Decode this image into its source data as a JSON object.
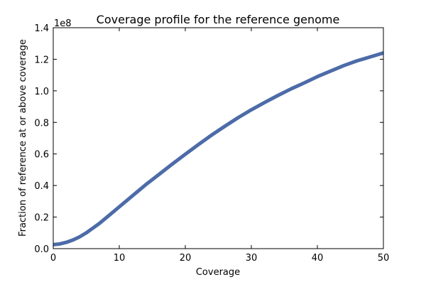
{
  "chart_data": {
    "type": "line",
    "title": "Coverage profile for the reference genome",
    "xlabel": "Coverage",
    "ylabel": "Fraction of reference at or above coverage",
    "y_exponent_label": "1e8",
    "xlim": [
      0,
      50
    ],
    "ylim": [
      0,
      1.4
    ],
    "x_ticks": [
      0,
      10,
      20,
      30,
      40,
      50
    ],
    "x_tick_labels": [
      "0",
      "10",
      "20",
      "30",
      "40",
      "50"
    ],
    "y_ticks": [
      0,
      0.2,
      0.4,
      0.6,
      0.8,
      1.0,
      1.2,
      1.4
    ],
    "y_tick_labels": [
      "0.0",
      "0.2",
      "0.4",
      "0.6",
      "0.8",
      "1.0",
      "1.2",
      "1.4"
    ],
    "grid": false,
    "legend": "none",
    "series": [
      {
        "color": "#4c6ba8",
        "x": [
          0,
          1,
          2,
          3,
          4,
          5,
          6,
          7,
          8,
          9,
          10,
          12,
          14,
          16,
          18,
          20,
          22,
          24,
          26,
          28,
          30,
          32,
          34,
          36,
          38,
          40,
          42,
          44,
          46,
          48,
          50
        ],
        "y": [
          0.025,
          0.03,
          0.04,
          0.055,
          0.075,
          0.1,
          0.13,
          0.16,
          0.195,
          0.23,
          0.265,
          0.335,
          0.405,
          0.47,
          0.535,
          0.598,
          0.66,
          0.72,
          0.776,
          0.83,
          0.88,
          0.926,
          0.97,
          1.012,
          1.05,
          1.09,
          1.125,
          1.16,
          1.19,
          1.215,
          1.24
        ]
      }
    ]
  }
}
